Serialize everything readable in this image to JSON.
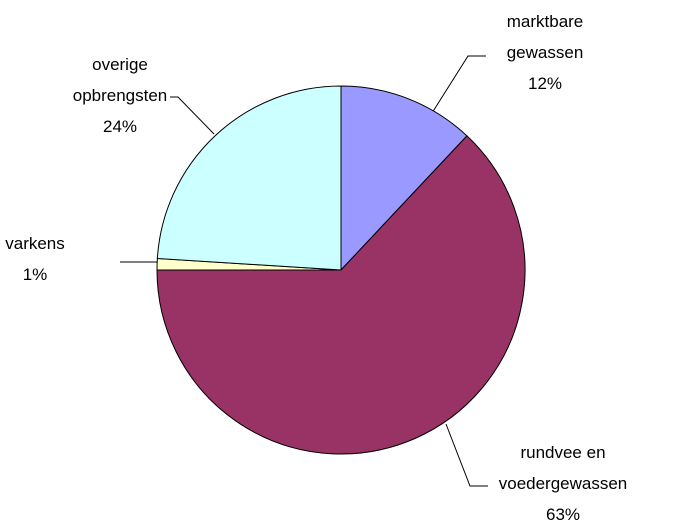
{
  "chart_data": {
    "type": "pie",
    "categories": [
      "marktbare gewassen",
      "rundvee en voedergewassen",
      "varkens",
      "overige opbrengsten"
    ],
    "values": [
      12,
      63,
      1,
      24
    ],
    "value_labels": [
      "12%",
      "63%",
      "1%",
      "24%"
    ],
    "colors": [
      "#9999ff",
      "#993366",
      "#ffffcc",
      "#ccffff"
    ]
  }
}
